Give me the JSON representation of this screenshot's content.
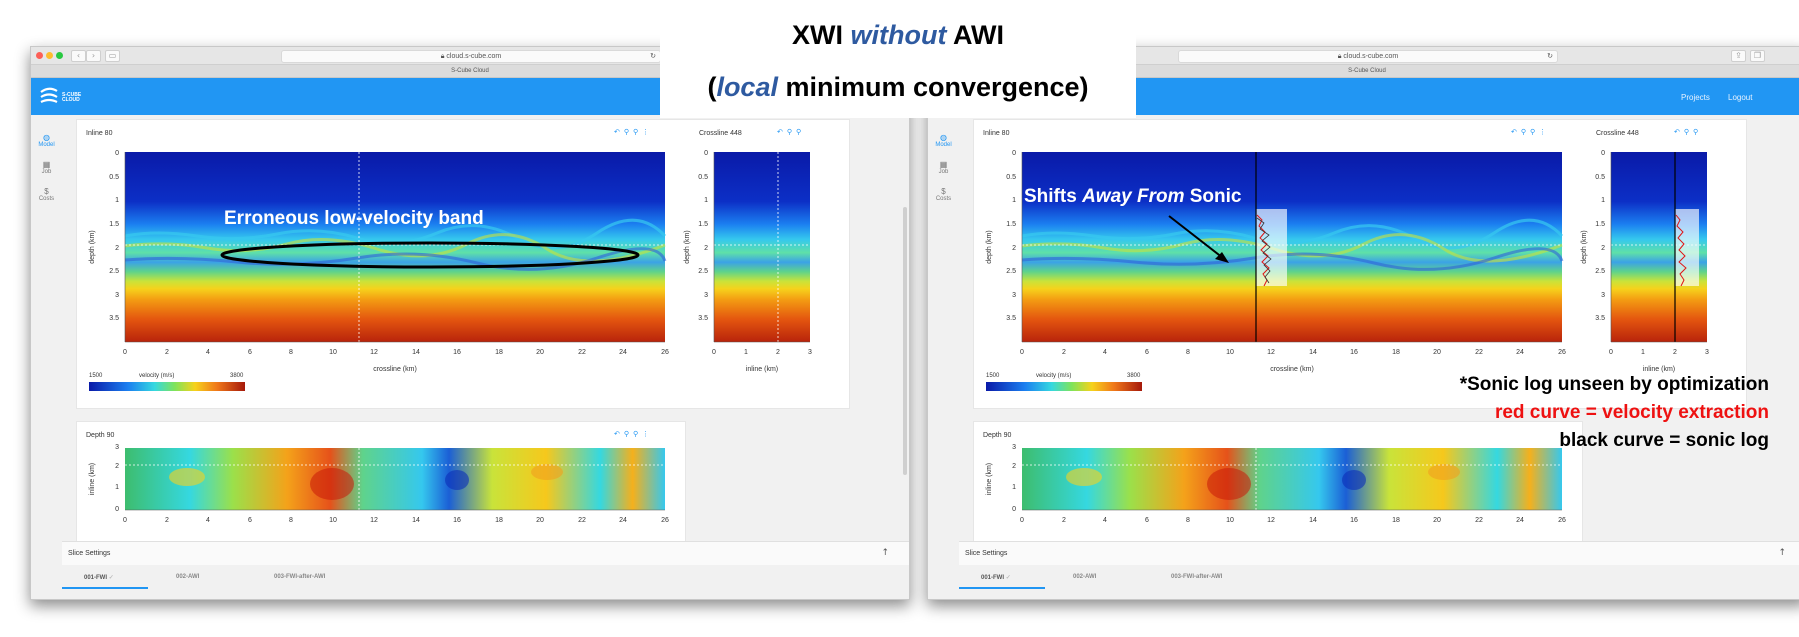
{
  "title": {
    "line1_a": "XWI ",
    "line1_em": "without",
    "line1_b": " AWI",
    "line2_a": "(",
    "line2_em": "local",
    "line2_b": " minimum convergence)"
  },
  "browser": {
    "url": "cloud.s-cube.com",
    "tab_title": "S-Cube Cloud"
  },
  "app": {
    "logo_text_1": "S-CUBE",
    "logo_text_2": "CLOUD",
    "header_links": [
      "Projects",
      "Logout"
    ],
    "sidebar": [
      {
        "icon": "globe-icon",
        "glyph": "◍",
        "label": "Model"
      },
      {
        "icon": "grid-icon",
        "glyph": "▦",
        "label": "Job"
      },
      {
        "icon": "dollar-icon",
        "glyph": "$",
        "label": "Costs"
      }
    ]
  },
  "panels": {
    "inline_title": "Inline 80",
    "crossline_title": "Crossline 448",
    "depth_title": "Depth 90",
    "velocity_label": "velocity (m/s)",
    "velocity_min": "1500",
    "velocity_max": "3800",
    "xlabel_inline": "crossline (km)",
    "ylabel_depth": "depth (km)",
    "xlabel_crossline": "inline (km)",
    "ylabel_inline": "inline (km)",
    "depth_ticks": [
      "0",
      "0.5",
      "1",
      "1.5",
      "2",
      "2.5",
      "3",
      "3.5"
    ],
    "crossline_ticks": [
      "0",
      "2",
      "4",
      "6",
      "8",
      "10",
      "12",
      "14",
      "16",
      "18",
      "20",
      "22",
      "24",
      "26"
    ],
    "inline_ticks": [
      "0",
      "1",
      "2",
      "3"
    ],
    "depth_slice_yticks": [
      "3",
      "2",
      "1",
      "0"
    ]
  },
  "slice_settings": "Slice Settings",
  "bottom_tabs": [
    "001-FWI",
    "002-AWI",
    "003-FWI-after-AWI"
  ],
  "annotations": {
    "erroneous": "Erroneous low-velocity band",
    "shifts_a": "Shifts ",
    "shifts_em": "Away From",
    "shifts_b": " Sonic",
    "note1": "*Sonic log unseen by optimization",
    "note2": "red curve = velocity extraction",
    "note3": "black curve = sonic log"
  },
  "colors": {
    "accent": "#2196f3",
    "title_emphasis": "#2e5aa0",
    "note_red": "#ee1111",
    "sonic_black": "#000000"
  }
}
